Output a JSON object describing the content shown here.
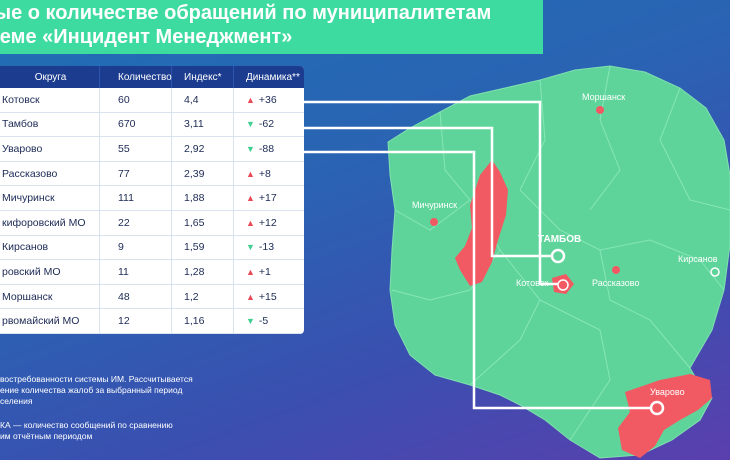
{
  "title": {
    "line1": "ые о количестве обращений по муниципалитетам",
    "line2": "теме «Инцидент Менеджмент»"
  },
  "table": {
    "headers": [
      "Округа",
      "Количество",
      "Индекс*",
      "Динамика**"
    ],
    "rows": [
      {
        "name": "Котовск",
        "count": "60",
        "index": "4,4",
        "trend": "up",
        "delta": "+36"
      },
      {
        "name": "Тамбов",
        "count": "670",
        "index": "3,11",
        "trend": "down",
        "delta": "-62"
      },
      {
        "name": "Уварово",
        "count": "55",
        "index": "2,92",
        "trend": "down",
        "delta": "-88"
      },
      {
        "name": "Рассказово",
        "count": "77",
        "index": "2,39",
        "trend": "up",
        "delta": "+8"
      },
      {
        "name": "Мичуринск",
        "count": "111",
        "index": "1,88",
        "trend": "up",
        "delta": "+17"
      },
      {
        "name": "кифоровский МО",
        "count": "22",
        "index": "1,65",
        "trend": "up",
        "delta": "+12"
      },
      {
        "name": "Кирсанов",
        "count": "9",
        "index": "1,59",
        "trend": "down",
        "delta": "-13"
      },
      {
        "name": "ровский МО",
        "count": "11",
        "index": "1,28",
        "trend": "up",
        "delta": "+1"
      },
      {
        "name": "Моршанск",
        "count": "48",
        "index": "1,2",
        "trend": "up",
        "delta": "+15"
      },
      {
        "name": "рвомайский МО",
        "count": "12",
        "index": "1,16",
        "trend": "down",
        "delta": "-5"
      }
    ]
  },
  "notes": {
    "n1_l1": "востребованности системы ИМ. Рассчитывается",
    "n1_l2": "ение количества жалоб за выбранный период",
    "n1_l3": "селения",
    "n2_l1": "КА — количество сообщений по сравнению",
    "n2_l2": "им отчётным периодом"
  },
  "map": {
    "cities": {
      "morshansk": "Моршанск",
      "michurinsk": "Мичуринск",
      "tambov": "ТАМБОВ",
      "kotovsk": "Котовск",
      "rasskazovo": "Рассказово",
      "kirsanov": "Кирсанов",
      "uvarovo": "Уварово"
    }
  },
  "colors": {
    "region": "#5fd49a",
    "highlight": "#f25a63",
    "title_bg": "#3ddba0",
    "header_bg": "#1c3d8f",
    "up": "#e84b58",
    "down": "#3fcf8e"
  }
}
